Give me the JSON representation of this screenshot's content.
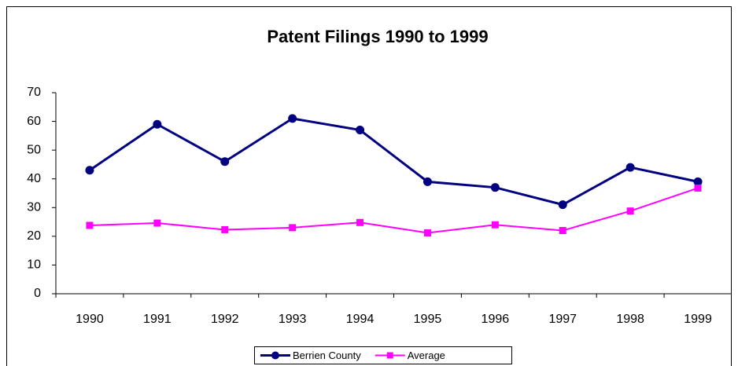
{
  "chart_data": {
    "type": "line",
    "title": "Patent Filings 1990 to 1999",
    "categories": [
      "1990",
      "1991",
      "1992",
      "1993",
      "1994",
      "1995",
      "1996",
      "1997",
      "1998",
      "1999"
    ],
    "series": [
      {
        "name": "Berrien County",
        "color": "#000080",
        "marker": "circle",
        "values": [
          43,
          59,
          46,
          61,
          57,
          39,
          37,
          31,
          44,
          39
        ]
      },
      {
        "name": "Average",
        "color": "#ff00ff",
        "marker": "square",
        "values": [
          23.8,
          24.6,
          22.3,
          23,
          24.8,
          21.2,
          24,
          22,
          28.8,
          36.8
        ]
      }
    ],
    "ylim": [
      0,
      70
    ],
    "yticks": [
      0,
      10,
      20,
      30,
      40,
      50,
      60,
      70
    ],
    "grid": false,
    "legend": "bottom"
  }
}
